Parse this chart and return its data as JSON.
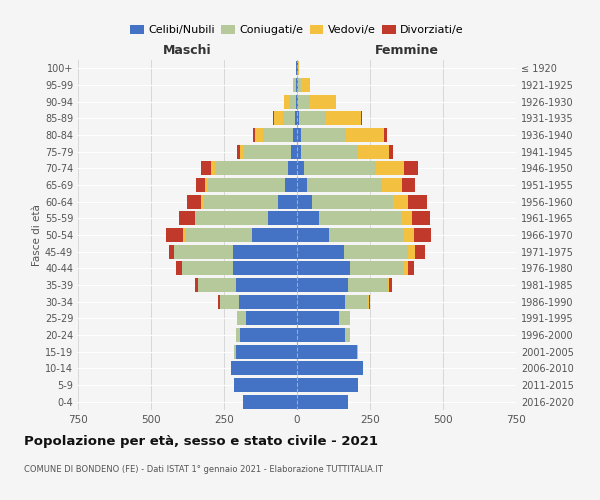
{
  "age_groups": [
    "0-4",
    "5-9",
    "10-14",
    "15-19",
    "20-24",
    "25-29",
    "30-34",
    "35-39",
    "40-44",
    "45-49",
    "50-54",
    "55-59",
    "60-64",
    "65-69",
    "70-74",
    "75-79",
    "80-84",
    "85-89",
    "90-94",
    "95-99",
    "100+"
  ],
  "birth_years": [
    "2016-2020",
    "2011-2015",
    "2006-2010",
    "2001-2005",
    "1996-2000",
    "1991-1995",
    "1986-1990",
    "1981-1985",
    "1976-1980",
    "1971-1975",
    "1966-1970",
    "1961-1965",
    "1956-1960",
    "1951-1955",
    "1946-1950",
    "1941-1945",
    "1936-1940",
    "1931-1935",
    "1926-1930",
    "1921-1925",
    "≤ 1920"
  ],
  "maschi": {
    "celibi": [
      185,
      215,
      225,
      210,
      195,
      175,
      200,
      210,
      220,
      220,
      155,
      100,
      65,
      40,
      30,
      20,
      15,
      8,
      5,
      4,
      2
    ],
    "coniugati": [
      0,
      0,
      0,
      5,
      15,
      30,
      65,
      130,
      175,
      200,
      230,
      245,
      255,
      265,
      250,
      160,
      100,
      40,
      20,
      5,
      0
    ],
    "vedovi": [
      0,
      0,
      0,
      0,
      0,
      0,
      0,
      0,
      0,
      0,
      5,
      5,
      8,
      10,
      15,
      15,
      30,
      30,
      20,
      5,
      0
    ],
    "divorziati": [
      0,
      0,
      0,
      0,
      0,
      0,
      5,
      10,
      20,
      20,
      60,
      55,
      50,
      30,
      35,
      10,
      5,
      5,
      0,
      0,
      0
    ]
  },
  "femmine": {
    "nubili": [
      175,
      210,
      225,
      205,
      165,
      145,
      165,
      175,
      180,
      160,
      110,
      75,
      50,
      35,
      25,
      15,
      12,
      8,
      5,
      3,
      2
    ],
    "coniugate": [
      0,
      0,
      0,
      5,
      15,
      35,
      75,
      135,
      185,
      220,
      255,
      280,
      280,
      255,
      245,
      195,
      155,
      90,
      40,
      10,
      0
    ],
    "vedove": [
      0,
      0,
      0,
      0,
      0,
      0,
      5,
      5,
      15,
      25,
      35,
      40,
      50,
      70,
      95,
      105,
      130,
      120,
      90,
      30,
      5
    ],
    "divorziate": [
      0,
      0,
      0,
      0,
      0,
      0,
      5,
      10,
      20,
      35,
      60,
      60,
      65,
      45,
      50,
      15,
      10,
      5,
      0,
      0,
      0
    ]
  },
  "colors": {
    "celibi": "#4472c4",
    "coniugati": "#b5c99a",
    "vedovi": "#f4c040",
    "divorziati": "#c0392b"
  },
  "xlim": 750,
  "title": "Popolazione per età, sesso e stato civile - 2021",
  "subtitle": "COMUNE DI BONDENO (FE) - Dati ISTAT 1° gennaio 2021 - Elaborazione TUTTITALIA.IT",
  "ylabel_left": "Fasce di età",
  "xlabel_left": "Maschi",
  "xlabel_right": "Femmine",
  "bg_color": "#f5f5f5",
  "grid_color": "#cccccc",
  "legend_labels": [
    "Celibi/Nubili",
    "Coniugati/e",
    "Vedovi/e",
    "Divorziati/e"
  ]
}
